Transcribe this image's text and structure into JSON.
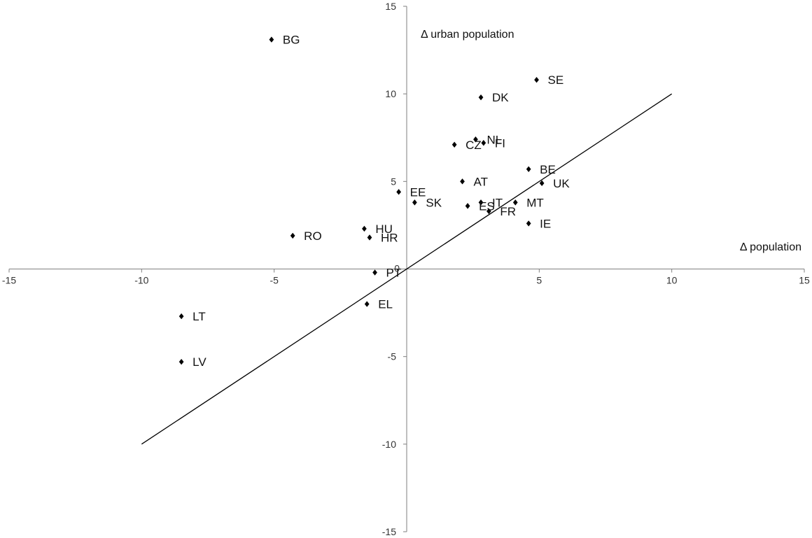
{
  "chart_data": {
    "type": "scatter",
    "title": "",
    "xlabel": "Δ population",
    "ylabel": "Δ urban population",
    "xlim": [
      -15,
      15
    ],
    "ylim": [
      -15,
      15
    ],
    "xticks": [
      -15,
      -10,
      -5,
      0,
      5,
      10,
      15
    ],
    "yticks": [
      -15,
      -10,
      -5,
      5,
      10,
      15
    ],
    "origin_label": "0",
    "grid": false,
    "legend": "none",
    "marker_color": "#000000",
    "points": [
      {
        "label": "BG",
        "x": -5.1,
        "y": 13.1
      },
      {
        "label": "SE",
        "x": 4.9,
        "y": 10.8
      },
      {
        "label": "DK",
        "x": 2.8,
        "y": 9.8
      },
      {
        "label": "NL",
        "x": 2.6,
        "y": 7.4
      },
      {
        "label": "FI",
        "x": 2.9,
        "y": 7.2
      },
      {
        "label": "CZ",
        "x": 1.8,
        "y": 7.1
      },
      {
        "label": "BE",
        "x": 4.6,
        "y": 5.7
      },
      {
        "label": "AT",
        "x": 2.1,
        "y": 5.0
      },
      {
        "label": "UK",
        "x": 5.1,
        "y": 4.9
      },
      {
        "label": "EE",
        "x": -0.3,
        "y": 4.4
      },
      {
        "label": "SK",
        "x": 0.3,
        "y": 3.8
      },
      {
        "label": "IT",
        "x": 2.8,
        "y": 3.8
      },
      {
        "label": "MT",
        "x": 4.1,
        "y": 3.8
      },
      {
        "label": "ES",
        "x": 2.3,
        "y": 3.6
      },
      {
        "label": "FR",
        "x": 3.1,
        "y": 3.3
      },
      {
        "label": "IE",
        "x": 4.6,
        "y": 2.6
      },
      {
        "label": "HU",
        "x": -1.6,
        "y": 2.3
      },
      {
        "label": "RO",
        "x": -4.3,
        "y": 1.9
      },
      {
        "label": "HR",
        "x": -1.4,
        "y": 1.8
      },
      {
        "label": "PT",
        "x": -1.2,
        "y": -0.2
      },
      {
        "label": "EL",
        "x": -1.5,
        "y": -2.0
      },
      {
        "label": "LT",
        "x": -8.5,
        "y": -2.7
      },
      {
        "label": "LV",
        "x": -8.5,
        "y": -5.3
      }
    ],
    "reference_line": {
      "x": [
        -10,
        10
      ],
      "y": [
        -10,
        10
      ]
    }
  }
}
